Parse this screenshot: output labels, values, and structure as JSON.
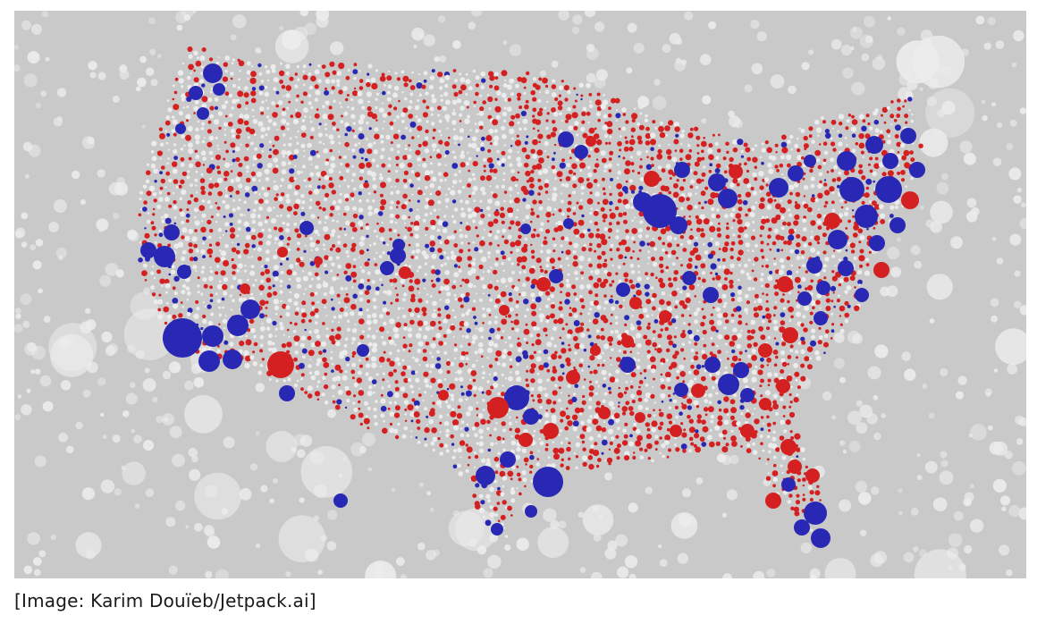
{
  "caption": "[Image: Karim Douïeb/Jetpack.ai]",
  "map": {
    "subject": "United States vote map drawn as circles",
    "colors": {
      "background": "#c9c9c9",
      "unpopulated_bubbles": "#ececec",
      "republican": "#d42020",
      "democrat": "#2828b4"
    },
    "legend": []
  }
}
